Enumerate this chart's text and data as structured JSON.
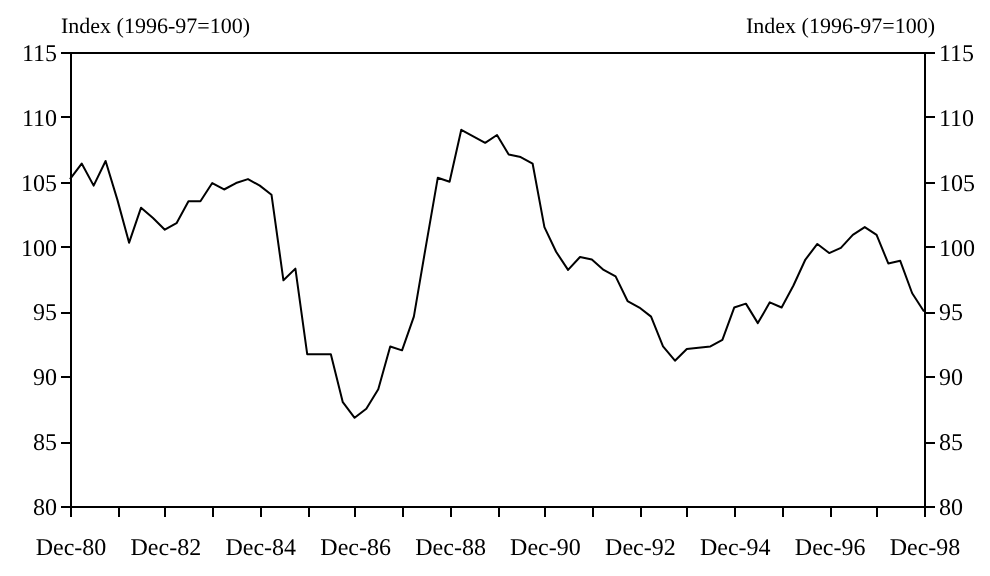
{
  "chart_data": {
    "type": "line",
    "ylabel": "Index (1996-97=100)",
    "y2label": "Index (1996-97=100)",
    "x": [
      "1980-12",
      "1981-03",
      "1981-06",
      "1981-09",
      "1981-12",
      "1982-03",
      "1982-06",
      "1982-09",
      "1982-12",
      "1983-03",
      "1983-06",
      "1983-09",
      "1983-12",
      "1984-03",
      "1984-06",
      "1984-09",
      "1984-12",
      "1985-03",
      "1985-06",
      "1985-09",
      "1985-12",
      "1986-03",
      "1986-06",
      "1986-09",
      "1986-12",
      "1987-03",
      "1987-06",
      "1987-09",
      "1987-12",
      "1988-03",
      "1988-06",
      "1988-09",
      "1988-12",
      "1989-03",
      "1989-06",
      "1989-09",
      "1989-12",
      "1990-03",
      "1990-06",
      "1990-09",
      "1990-12",
      "1991-03",
      "1991-06",
      "1991-09",
      "1991-12",
      "1992-03",
      "1992-06",
      "1992-09",
      "1992-12",
      "1993-03",
      "1993-06",
      "1993-09",
      "1993-12",
      "1994-03",
      "1994-06",
      "1994-09",
      "1994-12",
      "1995-03",
      "1995-06",
      "1995-09",
      "1995-12",
      "1996-03",
      "1996-06",
      "1996-09",
      "1996-12",
      "1997-03",
      "1997-06",
      "1997-09",
      "1997-12",
      "1998-03",
      "1998-06",
      "1998-09",
      "1998-12"
    ],
    "series": [
      {
        "color": "#000000",
        "values": [
          105.2,
          106.4,
          104.7,
          106.6,
          103.6,
          100.3,
          103.0,
          102.2,
          101.3,
          101.8,
          103.5,
          103.5,
          104.9,
          104.4,
          104.9,
          105.2,
          104.7,
          104.0,
          97.4,
          98.3,
          91.7,
          91.7,
          91.7,
          88.0,
          86.8,
          87.5,
          89.0,
          92.3,
          92.0,
          94.6,
          100.0,
          105.3,
          105.0,
          109.0,
          108.5,
          108.0,
          108.6,
          107.1,
          106.9,
          106.4,
          101.5,
          99.6,
          98.2,
          99.2,
          99.0,
          98.2,
          97.7,
          95.8,
          95.3,
          94.6,
          92.3,
          91.2,
          92.1,
          92.2,
          92.3,
          92.8,
          95.3,
          95.6,
          94.1,
          95.7,
          95.3,
          97.0,
          99.0,
          100.2,
          99.5,
          99.9,
          100.9,
          101.5,
          100.9,
          98.7,
          98.9,
          96.4,
          95.0
        ]
      }
    ],
    "xlim": [
      "1980-12",
      "1998-12"
    ],
    "xticks": [
      {
        "value": "1980-12",
        "label": "Dec-80"
      },
      {
        "value": "1981-12",
        "label": null
      },
      {
        "value": "1982-12",
        "label": "Dec-82"
      },
      {
        "value": "1983-12",
        "label": null
      },
      {
        "value": "1984-12",
        "label": "Dec-84"
      },
      {
        "value": "1985-12",
        "label": null
      },
      {
        "value": "1986-12",
        "label": "Dec-86"
      },
      {
        "value": "1987-12",
        "label": null
      },
      {
        "value": "1988-12",
        "label": "Dec-88"
      },
      {
        "value": "1989-12",
        "label": null
      },
      {
        "value": "1990-12",
        "label": "Dec-90"
      },
      {
        "value": "1991-12",
        "label": null
      },
      {
        "value": "1992-12",
        "label": "Dec-92"
      },
      {
        "value": "1993-12",
        "label": null
      },
      {
        "value": "1994-12",
        "label": "Dec-94"
      },
      {
        "value": "1995-12",
        "label": null
      },
      {
        "value": "1996-12",
        "label": "Dec-96"
      },
      {
        "value": "1997-12",
        "label": null
      },
      {
        "value": "1998-12",
        "label": "Dec-98"
      }
    ],
    "ylim": [
      80,
      115
    ],
    "yticks": [
      80,
      85,
      90,
      95,
      100,
      105,
      110,
      115
    ],
    "y2lim": [
      80,
      115
    ],
    "y2ticks": [
      80,
      85,
      90,
      95,
      100,
      105,
      110,
      115
    ],
    "grid": false,
    "legend": false,
    "marker": "none",
    "line_style": "solid"
  }
}
